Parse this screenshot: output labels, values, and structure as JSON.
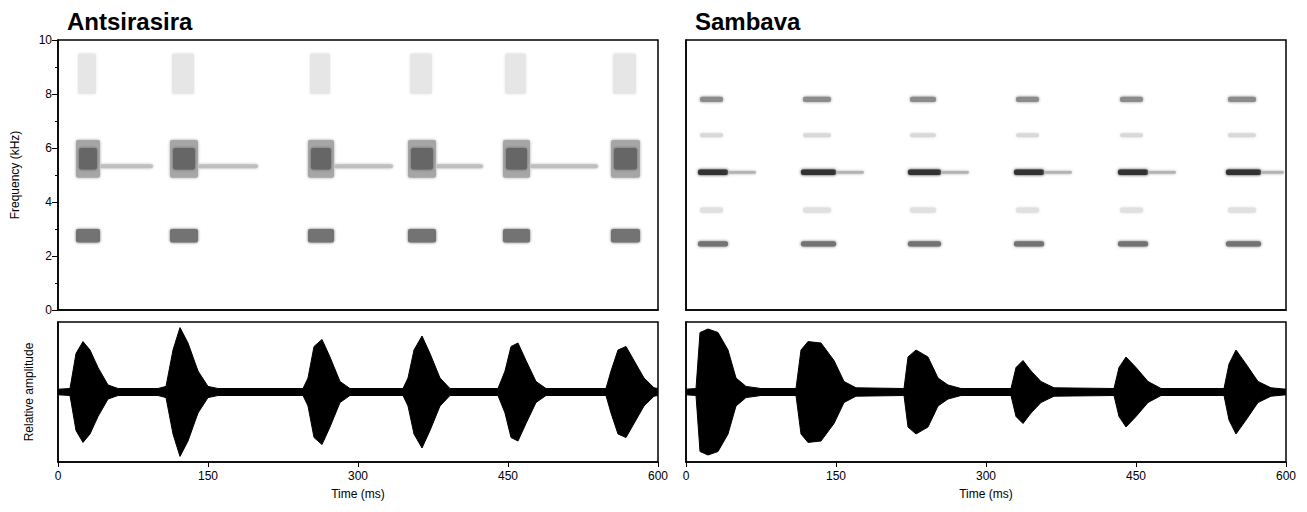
{
  "chart_data": [
    {
      "type": "spectrogram",
      "title": "Antsirasira",
      "ylabel": "Frequency (kHz)",
      "xlim": [
        0,
        600
      ],
      "ylim": [
        0,
        10
      ],
      "yticks": [
        0,
        2,
        4,
        6,
        8,
        10
      ],
      "tick_labels": "y",
      "grid": false,
      "color": "#000000",
      "cells": [
        {
          "time": [
            18,
            42
          ],
          "frequency": [
            4.9,
            6.3
          ],
          "intensity": 0.35
        },
        {
          "time": [
            21,
            39
          ],
          "frequency": [
            5.2,
            6.0
          ],
          "intensity": 0.6
        },
        {
          "time": [
            18,
            42
          ],
          "frequency": [
            2.5,
            3.0
          ],
          "intensity": 0.55
        },
        {
          "time": [
            20,
            38
          ],
          "frequency": [
            8.0,
            9.5
          ],
          "intensity": 0.1
        },
        {
          "time": [
            42,
            95
          ],
          "frequency": [
            5.25,
            5.4
          ],
          "intensity": 0.25
        },
        {
          "time": [
            112,
            140
          ],
          "frequency": [
            4.9,
            6.3
          ],
          "intensity": 0.35
        },
        {
          "time": [
            115,
            137
          ],
          "frequency": [
            5.2,
            6.0
          ],
          "intensity": 0.6
        },
        {
          "time": [
            112,
            140
          ],
          "frequency": [
            2.5,
            3.0
          ],
          "intensity": 0.55
        },
        {
          "time": [
            114,
            136
          ],
          "frequency": [
            8.0,
            9.5
          ],
          "intensity": 0.1
        },
        {
          "time": [
            140,
            200
          ],
          "frequency": [
            5.25,
            5.4
          ],
          "intensity": 0.25
        },
        {
          "time": [
            250,
            276
          ],
          "frequency": [
            4.9,
            6.3
          ],
          "intensity": 0.35
        },
        {
          "time": [
            253,
            273
          ],
          "frequency": [
            5.2,
            6.0
          ],
          "intensity": 0.6
        },
        {
          "time": [
            250,
            276
          ],
          "frequency": [
            2.5,
            3.0
          ],
          "intensity": 0.55
        },
        {
          "time": [
            252,
            272
          ],
          "frequency": [
            8.0,
            9.5
          ],
          "intensity": 0.1
        },
        {
          "time": [
            276,
            335
          ],
          "frequency": [
            5.25,
            5.4
          ],
          "intensity": 0.25
        },
        {
          "time": [
            350,
            378
          ],
          "frequency": [
            4.9,
            6.3
          ],
          "intensity": 0.35
        },
        {
          "time": [
            353,
            375
          ],
          "frequency": [
            5.2,
            6.0
          ],
          "intensity": 0.6
        },
        {
          "time": [
            350,
            378
          ],
          "frequency": [
            2.5,
            3.0
          ],
          "intensity": 0.55
        },
        {
          "time": [
            352,
            374
          ],
          "frequency": [
            8.0,
            9.5
          ],
          "intensity": 0.1
        },
        {
          "time": [
            378,
            425
          ],
          "frequency": [
            5.25,
            5.4
          ],
          "intensity": 0.25
        },
        {
          "time": [
            445,
            472
          ],
          "frequency": [
            4.9,
            6.3
          ],
          "intensity": 0.35
        },
        {
          "time": [
            448,
            469
          ],
          "frequency": [
            5.2,
            6.0
          ],
          "intensity": 0.6
        },
        {
          "time": [
            445,
            472
          ],
          "frequency": [
            2.5,
            3.0
          ],
          "intensity": 0.55
        },
        {
          "time": [
            447,
            468
          ],
          "frequency": [
            8.0,
            9.5
          ],
          "intensity": 0.1
        },
        {
          "time": [
            472,
            540
          ],
          "frequency": [
            5.25,
            5.4
          ],
          "intensity": 0.25
        },
        {
          "time": [
            553,
            582
          ],
          "frequency": [
            4.9,
            6.3
          ],
          "intensity": 0.35
        },
        {
          "time": [
            556,
            579
          ],
          "frequency": [
            5.2,
            6.0
          ],
          "intensity": 0.6
        },
        {
          "time": [
            553,
            582
          ],
          "frequency": [
            2.5,
            3.0
          ],
          "intensity": 0.55
        },
        {
          "time": [
            555,
            578
          ],
          "frequency": [
            8.0,
            9.5
          ],
          "intensity": 0.1
        }
      ]
    },
    {
      "type": "waveform",
      "ylabel": "Relative amplitude",
      "xlabel": "Time (ms)",
      "xlim": [
        0,
        600
      ],
      "xticks": [
        0,
        150,
        300,
        450,
        600
      ],
      "ylim": [
        -1,
        1
      ],
      "tick_labels": "x",
      "grid": false,
      "color": "#000000",
      "x": [
        0,
        12,
        18,
        25,
        32,
        40,
        50,
        60,
        100,
        108,
        115,
        122,
        130,
        140,
        150,
        160,
        245,
        250,
        256,
        264,
        272,
        282,
        292,
        345,
        350,
        356,
        364,
        372,
        382,
        392,
        440,
        447,
        453,
        460,
        468,
        478,
        488,
        548,
        553,
        560,
        568,
        576,
        586,
        596,
        600
      ],
      "values": [
        0.04,
        0.05,
        0.55,
        0.72,
        0.6,
        0.35,
        0.1,
        0.05,
        0.05,
        0.08,
        0.6,
        0.92,
        0.7,
        0.3,
        0.08,
        0.05,
        0.05,
        0.2,
        0.65,
        0.75,
        0.5,
        0.15,
        0.05,
        0.05,
        0.2,
        0.6,
        0.8,
        0.55,
        0.2,
        0.05,
        0.05,
        0.3,
        0.65,
        0.7,
        0.45,
        0.15,
        0.05,
        0.05,
        0.3,
        0.6,
        0.65,
        0.45,
        0.2,
        0.06,
        0.05
      ]
    },
    {
      "type": "spectrogram",
      "title": "Sambava",
      "xlim": [
        0,
        600
      ],
      "ylim": [
        0,
        10
      ],
      "tick_labels": false,
      "grid": false,
      "color": "#000000",
      "cells": [
        {
          "time": [
            12,
            42
          ],
          "frequency": [
            5.0,
            5.2
          ],
          "intensity": 0.8
        },
        {
          "time": [
            42,
            70
          ],
          "frequency": [
            5.05,
            5.15
          ],
          "intensity": 0.3
        },
        {
          "time": [
            14,
            37
          ],
          "frequency": [
            7.7,
            7.9
          ],
          "intensity": 0.45
        },
        {
          "time": [
            14,
            37
          ],
          "frequency": [
            6.4,
            6.55
          ],
          "intensity": 0.15
        },
        {
          "time": [
            12,
            42
          ],
          "frequency": [
            2.35,
            2.55
          ],
          "intensity": 0.55
        },
        {
          "time": [
            14,
            37
          ],
          "frequency": [
            3.6,
            3.8
          ],
          "intensity": 0.12
        },
        {
          "time": [
            115,
            150
          ],
          "frequency": [
            5.0,
            5.2
          ],
          "intensity": 0.8
        },
        {
          "time": [
            150,
            178
          ],
          "frequency": [
            5.05,
            5.15
          ],
          "intensity": 0.3
        },
        {
          "time": [
            117,
            145
          ],
          "frequency": [
            7.7,
            7.9
          ],
          "intensity": 0.45
        },
        {
          "time": [
            117,
            145
          ],
          "frequency": [
            6.4,
            6.55
          ],
          "intensity": 0.15
        },
        {
          "time": [
            115,
            150
          ],
          "frequency": [
            2.35,
            2.55
          ],
          "intensity": 0.55
        },
        {
          "time": [
            117,
            145
          ],
          "frequency": [
            3.6,
            3.8
          ],
          "intensity": 0.12
        },
        {
          "time": [
            222,
            255
          ],
          "frequency": [
            5.0,
            5.2
          ],
          "intensity": 0.8
        },
        {
          "time": [
            255,
            283
          ],
          "frequency": [
            5.05,
            5.15
          ],
          "intensity": 0.3
        },
        {
          "time": [
            224,
            250
          ],
          "frequency": [
            7.7,
            7.9
          ],
          "intensity": 0.45
        },
        {
          "time": [
            224,
            250
          ],
          "frequency": [
            6.4,
            6.55
          ],
          "intensity": 0.15
        },
        {
          "time": [
            222,
            255
          ],
          "frequency": [
            2.35,
            2.55
          ],
          "intensity": 0.55
        },
        {
          "time": [
            224,
            250
          ],
          "frequency": [
            3.6,
            3.8
          ],
          "intensity": 0.12
        },
        {
          "time": [
            328,
            358
          ],
          "frequency": [
            5.0,
            5.2
          ],
          "intensity": 0.8
        },
        {
          "time": [
            358,
            386
          ],
          "frequency": [
            5.05,
            5.15
          ],
          "intensity": 0.3
        },
        {
          "time": [
            330,
            353
          ],
          "frequency": [
            7.7,
            7.9
          ],
          "intensity": 0.45
        },
        {
          "time": [
            330,
            353
          ],
          "frequency": [
            6.4,
            6.55
          ],
          "intensity": 0.15
        },
        {
          "time": [
            328,
            358
          ],
          "frequency": [
            2.35,
            2.55
          ],
          "intensity": 0.55
        },
        {
          "time": [
            330,
            353
          ],
          "frequency": [
            3.6,
            3.8
          ],
          "intensity": 0.12
        },
        {
          "time": [
            432,
            462
          ],
          "frequency": [
            5.0,
            5.2
          ],
          "intensity": 0.8
        },
        {
          "time": [
            462,
            490
          ],
          "frequency": [
            5.05,
            5.15
          ],
          "intensity": 0.3
        },
        {
          "time": [
            434,
            457
          ],
          "frequency": [
            7.7,
            7.9
          ],
          "intensity": 0.45
        },
        {
          "time": [
            434,
            457
          ],
          "frequency": [
            6.4,
            6.55
          ],
          "intensity": 0.15
        },
        {
          "time": [
            432,
            462
          ],
          "frequency": [
            2.35,
            2.55
          ],
          "intensity": 0.55
        },
        {
          "time": [
            434,
            457
          ],
          "frequency": [
            3.6,
            3.8
          ],
          "intensity": 0.12
        },
        {
          "time": [
            540,
            575
          ],
          "frequency": [
            5.0,
            5.2
          ],
          "intensity": 0.8
        },
        {
          "time": [
            575,
            598
          ],
          "frequency": [
            5.05,
            5.15
          ],
          "intensity": 0.3
        },
        {
          "time": [
            542,
            570
          ],
          "frequency": [
            7.7,
            7.9
          ],
          "intensity": 0.45
        },
        {
          "time": [
            542,
            570
          ],
          "frequency": [
            6.4,
            6.55
          ],
          "intensity": 0.15
        },
        {
          "time": [
            540,
            575
          ],
          "frequency": [
            2.35,
            2.55
          ],
          "intensity": 0.55
        },
        {
          "time": [
            542,
            570
          ],
          "frequency": [
            3.6,
            3.8
          ],
          "intensity": 0.12
        }
      ]
    },
    {
      "type": "waveform",
      "xlabel": "Time (ms)",
      "xlim": [
        0,
        600
      ],
      "xticks": [
        0,
        150,
        300,
        450,
        600
      ],
      "ylim": [
        -1,
        1
      ],
      "tick_labels": "x",
      "grid": false,
      "color": "#000000",
      "x": [
        0,
        10,
        14,
        22,
        32,
        42,
        50,
        60,
        75,
        110,
        115,
        122,
        135,
        148,
        158,
        170,
        218,
        222,
        230,
        242,
        252,
        262,
        275,
        325,
        330,
        337,
        345,
        355,
        368,
        428,
        433,
        440,
        450,
        462,
        475,
        538,
        543,
        550,
        560,
        572,
        585,
        600
      ],
      "values": [
        0.04,
        0.05,
        0.85,
        0.9,
        0.85,
        0.6,
        0.2,
        0.08,
        0.05,
        0.05,
        0.6,
        0.72,
        0.7,
        0.45,
        0.15,
        0.06,
        0.05,
        0.5,
        0.6,
        0.5,
        0.2,
        0.1,
        0.05,
        0.05,
        0.35,
        0.45,
        0.3,
        0.15,
        0.06,
        0.05,
        0.35,
        0.5,
        0.35,
        0.15,
        0.05,
        0.05,
        0.4,
        0.6,
        0.4,
        0.15,
        0.06,
        0.04
      ]
    }
  ]
}
